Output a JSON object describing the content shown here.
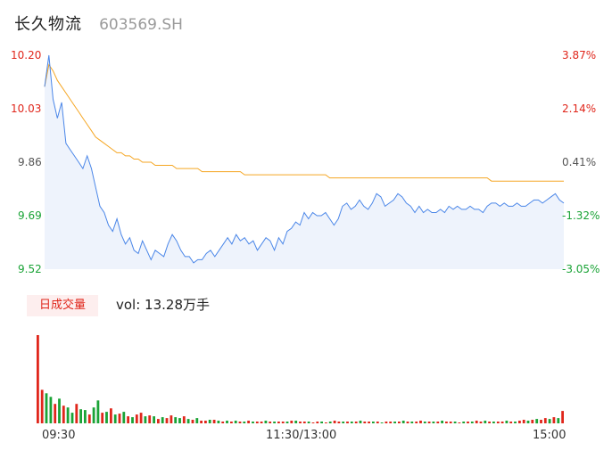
{
  "header": {
    "name": "长久物流",
    "code": "603569.SH"
  },
  "volume_tab_label": "日成交量",
  "volume_text": "vol: 13.28万手",
  "colors": {
    "up": "#e0261b",
    "down": "#1aa336",
    "price_line": "#4a86e8",
    "avg_line": "#f5a623",
    "area_fill": "#eef3fc"
  },
  "chart_data": [
    {
      "type": "line",
      "title": "",
      "ylim": [
        9.52,
        10.2
      ],
      "price_ticks": [
        "10.20",
        "10.03",
        "9.86",
        "9.69",
        "9.52"
      ],
      "pct_ticks": [
        "3.87%",
        "2.14%",
        "0.41%",
        "-1.32%",
        "-3.05%"
      ],
      "x_ticks": [
        "09:30",
        "11:30/13:00",
        "15:00"
      ],
      "series": [
        {
          "role": "price",
          "values": [
            10.1,
            10.2,
            10.06,
            10.0,
            10.05,
            9.92,
            9.9,
            9.88,
            9.86,
            9.84,
            9.88,
            9.84,
            9.78,
            9.72,
            9.7,
            9.66,
            9.64,
            9.68,
            9.63,
            9.6,
            9.62,
            9.58,
            9.57,
            9.61,
            9.58,
            9.55,
            9.58,
            9.57,
            9.56,
            9.6,
            9.63,
            9.61,
            9.58,
            9.56,
            9.56,
            9.54,
            9.55,
            9.55,
            9.57,
            9.58,
            9.56,
            9.58,
            9.6,
            9.62,
            9.6,
            9.63,
            9.61,
            9.62,
            9.6,
            9.61,
            9.58,
            9.6,
            9.62,
            9.61,
            9.58,
            9.62,
            9.6,
            9.64,
            9.65,
            9.67,
            9.66,
            9.7,
            9.68,
            9.7,
            9.69,
            9.69,
            9.7,
            9.68,
            9.66,
            9.68,
            9.72,
            9.73,
            9.71,
            9.72,
            9.74,
            9.72,
            9.71,
            9.73,
            9.76,
            9.75,
            9.72,
            9.73,
            9.74,
            9.76,
            9.75,
            9.73,
            9.72,
            9.7,
            9.72,
            9.7,
            9.71,
            9.7,
            9.7,
            9.71,
            9.7,
            9.72,
            9.71,
            9.72,
            9.71,
            9.71,
            9.72,
            9.71,
            9.71,
            9.7,
            9.72,
            9.73,
            9.73,
            9.72,
            9.73,
            9.72,
            9.72,
            9.73,
            9.72,
            9.72,
            9.73,
            9.74,
            9.74,
            9.73,
            9.74,
            9.75,
            9.76,
            9.74,
            9.73
          ]
        },
        {
          "role": "average",
          "values": [
            10.1,
            10.17,
            10.15,
            10.12,
            10.1,
            10.08,
            10.06,
            10.04,
            10.02,
            10.0,
            9.98,
            9.96,
            9.94,
            9.93,
            9.92,
            9.91,
            9.9,
            9.89,
            9.89,
            9.88,
            9.88,
            9.87,
            9.87,
            9.86,
            9.86,
            9.86,
            9.85,
            9.85,
            9.85,
            9.85,
            9.85,
            9.84,
            9.84,
            9.84,
            9.84,
            9.84,
            9.84,
            9.83,
            9.83,
            9.83,
            9.83,
            9.83,
            9.83,
            9.83,
            9.83,
            9.83,
            9.83,
            9.82,
            9.82,
            9.82,
            9.82,
            9.82,
            9.82,
            9.82,
            9.82,
            9.82,
            9.82,
            9.82,
            9.82,
            9.82,
            9.82,
            9.82,
            9.82,
            9.82,
            9.82,
            9.82,
            9.82,
            9.81,
            9.81,
            9.81,
            9.81,
            9.81,
            9.81,
            9.81,
            9.81,
            9.81,
            9.81,
            9.81,
            9.81,
            9.81,
            9.81,
            9.81,
            9.81,
            9.81,
            9.81,
            9.81,
            9.81,
            9.81,
            9.81,
            9.81,
            9.81,
            9.81,
            9.81,
            9.81,
            9.81,
            9.81,
            9.81,
            9.81,
            9.81,
            9.81,
            9.81,
            9.81,
            9.81,
            9.81,
            9.81,
            9.8,
            9.8,
            9.8,
            9.8,
            9.8,
            9.8,
            9.8,
            9.8,
            9.8,
            9.8,
            9.8,
            9.8,
            9.8,
            9.8,
            9.8,
            9.8,
            9.8,
            9.8
          ]
        }
      ]
    },
    {
      "type": "bar",
      "title": "",
      "unit": "relative",
      "ylim": [
        0,
        100
      ],
      "values": [
        100,
        38,
        34,
        30,
        22,
        28,
        20,
        18,
        12,
        22,
        16,
        15,
        10,
        18,
        26,
        12,
        13,
        17,
        10,
        11,
        13,
        8,
        7,
        10,
        12,
        8,
        9,
        8,
        5,
        7,
        6,
        9,
        7,
        6,
        8,
        5,
        4,
        6,
        3,
        3,
        4,
        4,
        3,
        2,
        3,
        2,
        3,
        2,
        2,
        3,
        2,
        2,
        2,
        3,
        2,
        2,
        2,
        2,
        2,
        3,
        3,
        2,
        2,
        2,
        1,
        2,
        2,
        1,
        2,
        3,
        2,
        2,
        2,
        2,
        2,
        3,
        2,
        2,
        2,
        2,
        1,
        2,
        2,
        2,
        2,
        3,
        2,
        2,
        2,
        3,
        2,
        2,
        2,
        2,
        3,
        2,
        2,
        2,
        1,
        2,
        2,
        2,
        3,
        2,
        3,
        2,
        2,
        2,
        2,
        3,
        2,
        2,
        3,
        4,
        3,
        4,
        5,
        4,
        6,
        5,
        7,
        6,
        14
      ],
      "up": [
        1,
        1,
        0,
        0,
        1,
        0,
        1,
        0,
        0,
        1,
        0,
        0,
        1,
        0,
        0,
        1,
        0,
        1,
        0,
        1,
        0,
        1,
        0,
        1,
        1,
        0,
        1,
        0,
        1,
        0,
        1,
        1,
        0,
        0,
        1,
        0,
        1,
        0,
        1,
        1,
        0,
        1,
        0,
        1,
        0,
        1,
        0,
        1,
        0,
        1,
        0,
        1,
        1,
        0,
        1,
        0,
        1,
        1,
        0,
        1,
        0,
        1,
        1,
        0,
        1,
        1,
        0,
        1,
        0,
        1,
        1,
        0,
        1,
        0,
        1,
        0,
        1,
        1,
        0,
        1,
        0,
        1,
        1,
        0,
        1,
        0,
        1,
        0,
        1,
        1,
        0,
        1,
        0,
        1,
        0,
        1,
        1,
        0,
        1,
        0,
        1,
        0,
        1,
        1,
        0,
        1,
        0,
        1,
        1,
        0,
        1,
        0,
        1,
        1,
        0,
        1,
        0,
        1,
        1,
        0,
        1,
        0,
        1
      ]
    }
  ]
}
